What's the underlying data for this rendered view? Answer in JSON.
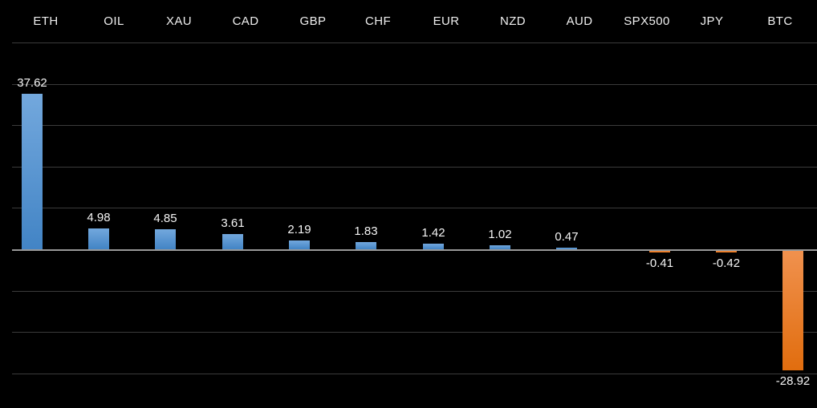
{
  "widget": {
    "description": "market movers percentage-change bar chart"
  },
  "chart_data": {
    "type": "bar",
    "title": "",
    "xlabel": "",
    "ylabel": "",
    "categories": [
      "ETH",
      "OIL",
      "XAU",
      "CAD",
      "GBP",
      "CHF",
      "EUR",
      "NZD",
      "AUD",
      "SPX500",
      "JPY",
      "BTC"
    ],
    "values": [
      37.62,
      4.98,
      4.85,
      3.61,
      2.19,
      1.83,
      1.42,
      1.02,
      0.47,
      -0.41,
      -0.42,
      -28.92
    ],
    "value_labels": [
      "37.62",
      "4.98",
      "4.85",
      "3.61",
      "2.19",
      "1.83",
      "1.42",
      "1.02",
      "0.47",
      "-0.41",
      "-0.42",
      "-28.92"
    ],
    "ylim": [
      -35,
      50
    ],
    "gridline_values": [
      50,
      40,
      30,
      20,
      10,
      -10,
      -20,
      -30
    ],
    "zero_axis_value": 0,
    "grid": true,
    "legend": false,
    "category_labels_position": "top",
    "colors": {
      "background": "#000000",
      "header_text": "#f0f0f0",
      "value_text": "#f5f5f5",
      "gridline": "#3b3b3b",
      "zero_axis": "#999999",
      "positive_bar_top": "#73a8dd",
      "positive_bar_bottom": "#4284c5",
      "negative_bar_top": "#f0914e",
      "negative_bar_bottom": "#e16d0e"
    }
  }
}
